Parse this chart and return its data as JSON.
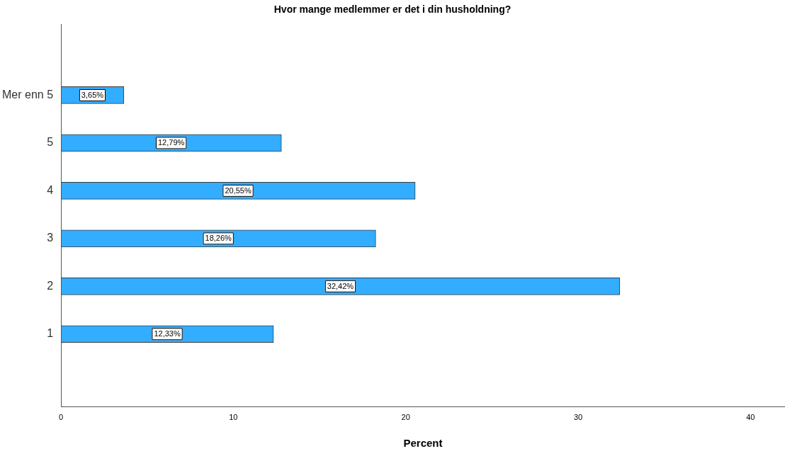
{
  "chart_data": {
    "type": "bar",
    "orientation": "horizontal",
    "title": "Hvor mange medlemmer er det i din husholdning?",
    "xlabel": "Percent",
    "categories": [
      "Mer enn 5",
      "5",
      "4",
      "3",
      "2",
      "1"
    ],
    "values": [
      3.65,
      12.79,
      20.55,
      18.26,
      32.42,
      12.33
    ],
    "value_labels": [
      "3,65%",
      "12,79%",
      "20,55%",
      "18,26%",
      "32,42%",
      "12,33%"
    ],
    "color": "#33adff",
    "xlim": [
      0,
      42
    ],
    "xticks": [
      0,
      10,
      20,
      30,
      40
    ],
    "grid": false,
    "legend": false
  }
}
